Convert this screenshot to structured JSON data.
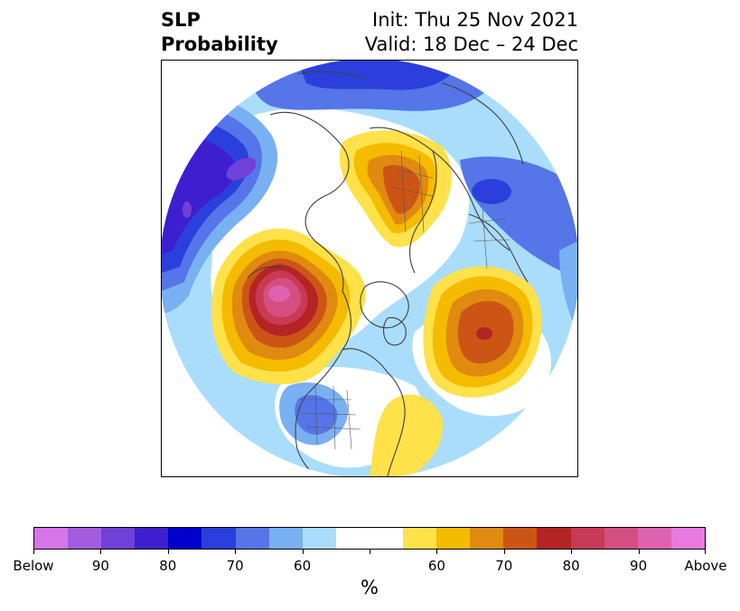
{
  "header": {
    "title_line1": "SLP",
    "title_line2": "Probability",
    "init": "Init: Thu 25 Nov 2021",
    "valid": "Valid: 18 Dec – 24 Dec"
  },
  "colorbar": {
    "colors": [
      "#d675e8",
      "#a35ce0",
      "#7040d8",
      "#3d1fd0",
      "#0000cc",
      "#2a3fdc",
      "#5575e8",
      "#78b0f2",
      "#aaddfb",
      "#ffffff",
      "#ffffff",
      "#ffe14a",
      "#f4bb00",
      "#e08a10",
      "#cc5515",
      "#b42424",
      "#c83a55",
      "#d44f80",
      "#de62b0",
      "#ea7ae0"
    ],
    "tick_labels": [
      "Below",
      "90",
      "80",
      "70",
      "60",
      "",
      "60",
      "70",
      "80",
      "90",
      "Above"
    ],
    "unit": "%"
  },
  "legend_colors": {
    "above_low": "#ffe14a",
    "above_mid": "#f4bb00",
    "above_70": "#e08a10",
    "above_75": "#cc5515",
    "above_80": "#b42424",
    "above_90": "#c83a55",
    "above_95": "#d44f80",
    "above_top": "#de62b0",
    "below_low": "#aaddfb",
    "below_60": "#78b0f2",
    "below_70": "#5575e8",
    "below_80": "#2a3fdc",
    "below_85": "#0000cc",
    "below_90": "#3d1fd0",
    "below_95": "#7040d8",
    "below_top": "#a35ce0"
  }
}
